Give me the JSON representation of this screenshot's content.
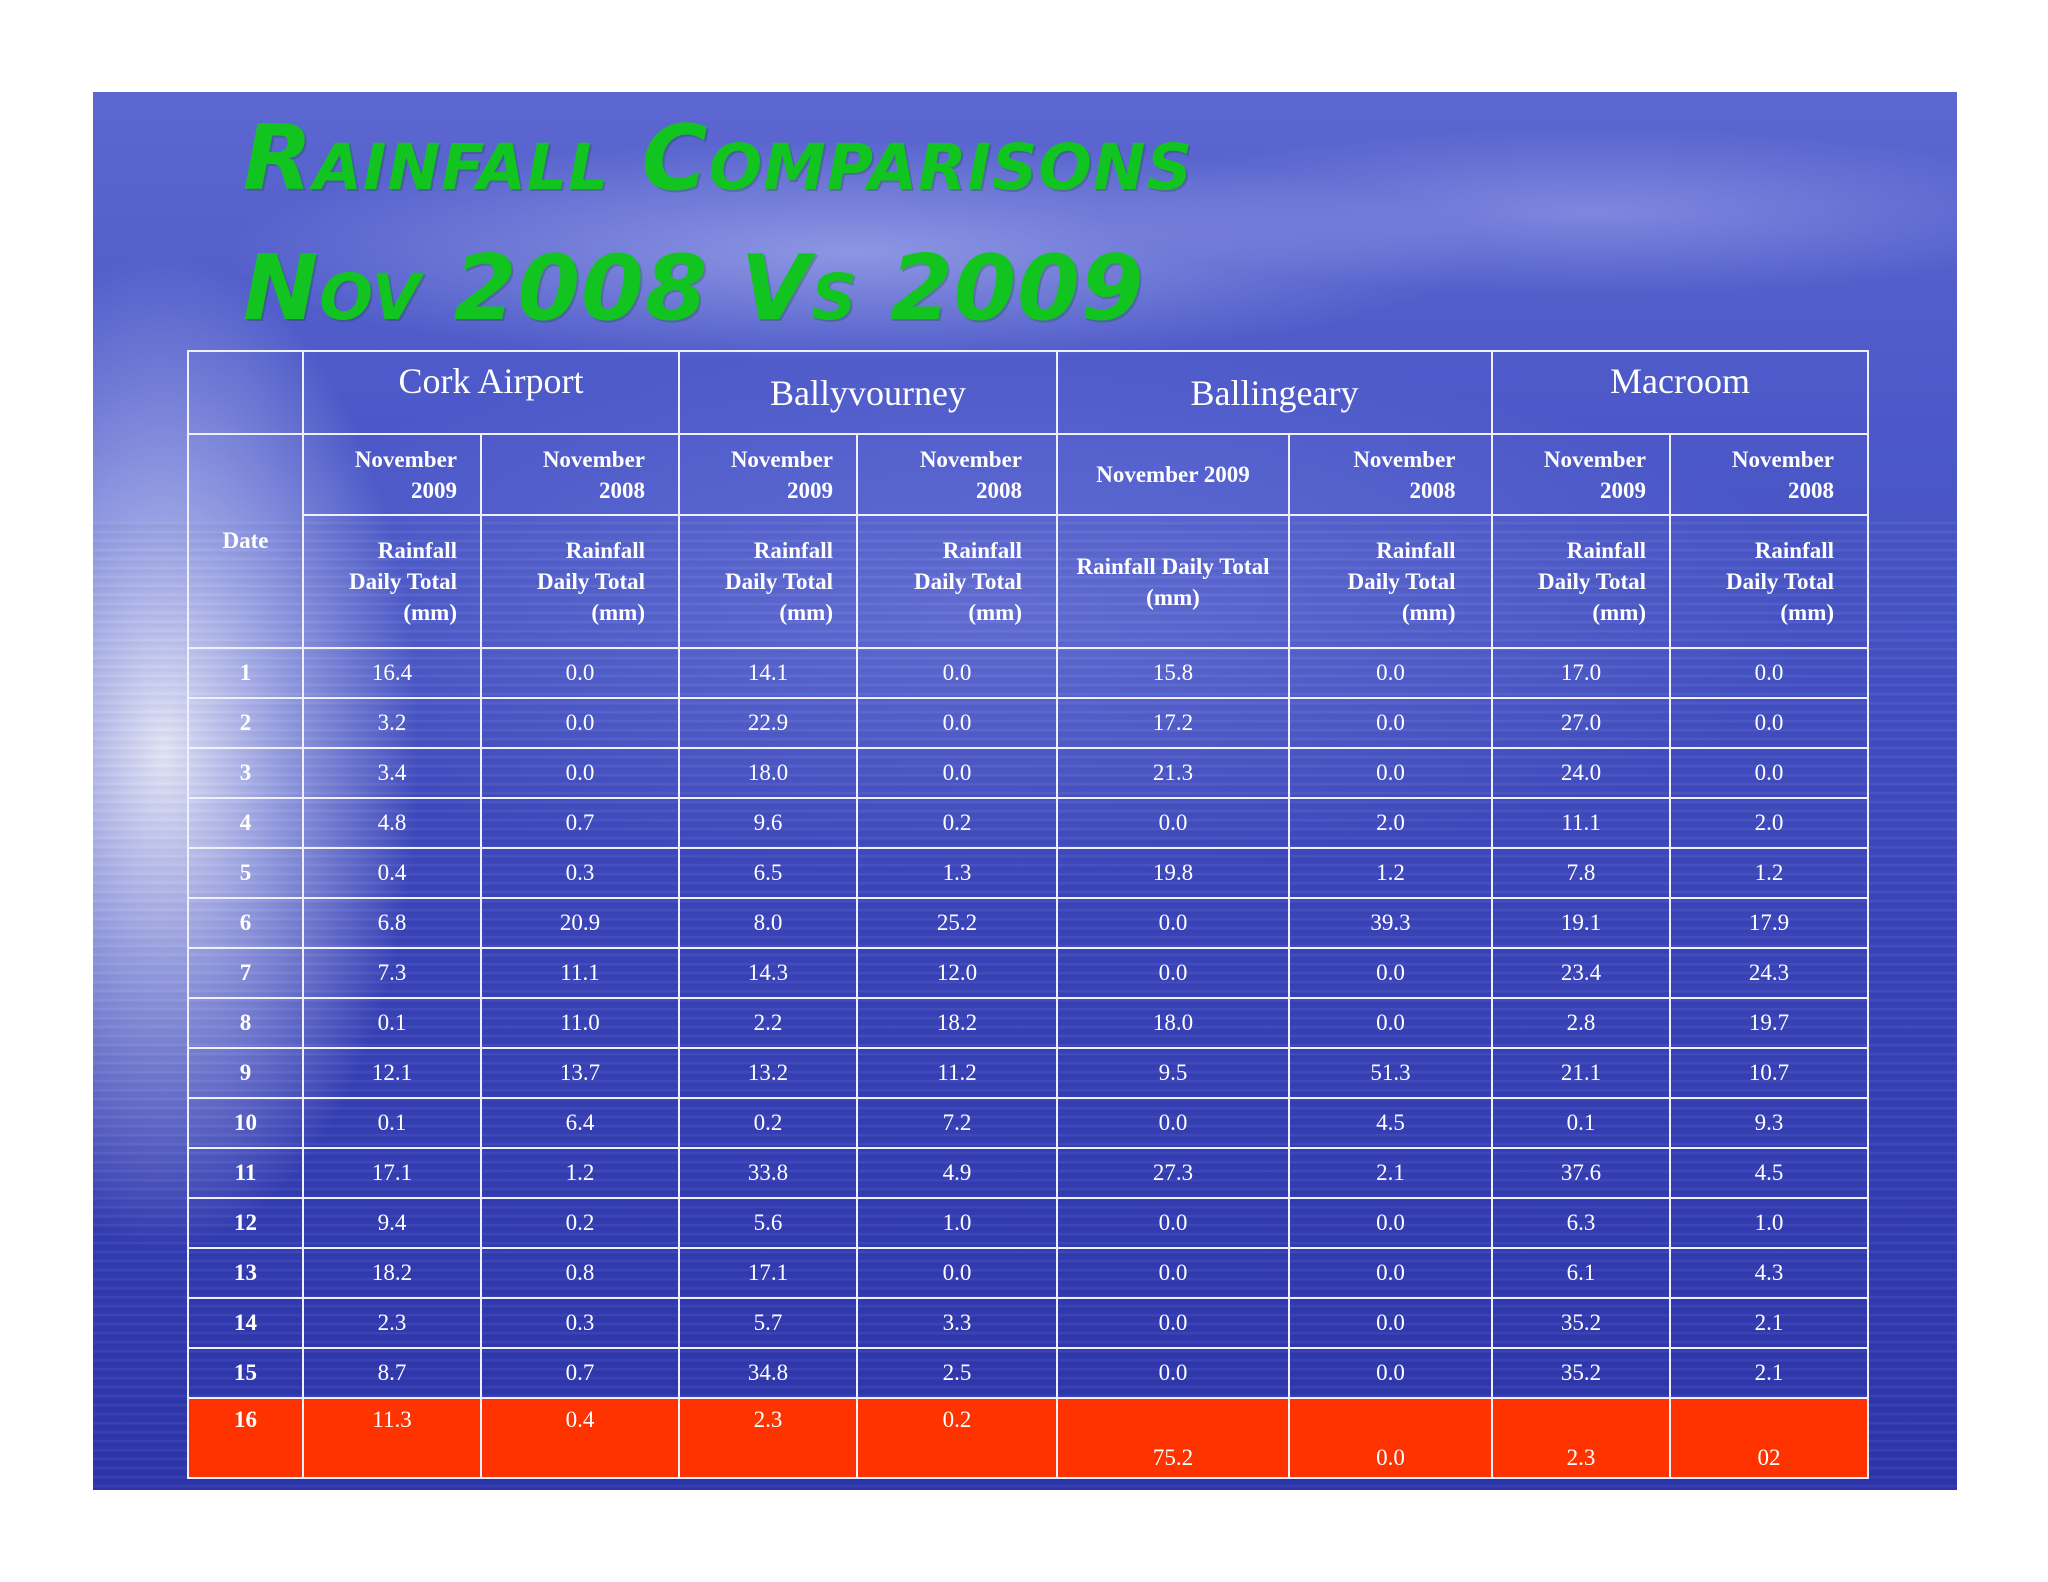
{
  "title_line_1": "Rainfall Comparisons",
  "title_line_2": "Nov 2008 Vs 2009",
  "colors": {
    "title": "#12c41f",
    "highlight_row": "#ff3300",
    "background": "#4653c4"
  },
  "table": {
    "stations": [
      "Cork Airport",
      "Ballyvourney",
      "Ballingeary",
      "Macroom"
    ],
    "date_label": "Date",
    "month_headers": [
      "November 2009",
      "November 2008",
      "November 2009",
      "November 2008",
      "November 2009",
      "November 2008",
      "November 2009",
      "November 2008"
    ],
    "metric_headers": [
      "Rainfall Daily Total (mm)",
      "Rainfall Daily Total (mm)",
      "Rainfall Daily Total (mm)",
      "Rainfall Daily Total (mm)",
      "Rainfall Daily Total (mm)",
      "Rainfall Daily Total (mm)",
      "Rainfall Daily Total (mm)",
      "Rainfall Daily Total (mm)"
    ],
    "rows": [
      {
        "date": "1",
        "values": [
          "16.4",
          "0.0",
          "14.1",
          "0.0",
          "15.8",
          "0.0",
          "17.0",
          "0.0"
        ]
      },
      {
        "date": "2",
        "values": [
          "3.2",
          "0.0",
          "22.9",
          "0.0",
          "17.2",
          "0.0",
          "27.0",
          "0.0"
        ]
      },
      {
        "date": "3",
        "values": [
          "3.4",
          "0.0",
          "18.0",
          "0.0",
          "21.3",
          "0.0",
          "24.0",
          "0.0"
        ]
      },
      {
        "date": "4",
        "values": [
          "4.8",
          "0.7",
          "9.6",
          "0.2",
          "0.0",
          "2.0",
          "11.1",
          "2.0"
        ]
      },
      {
        "date": "5",
        "values": [
          "0.4",
          "0.3",
          "6.5",
          "1.3",
          "19.8",
          "1.2",
          "7.8",
          "1.2"
        ]
      },
      {
        "date": "6",
        "values": [
          "6.8",
          "20.9",
          "8.0",
          "25.2",
          "0.0",
          "39.3",
          "19.1",
          "17.9"
        ]
      },
      {
        "date": "7",
        "values": [
          "7.3",
          "11.1",
          "14.3",
          "12.0",
          "0.0",
          "0.0",
          "23.4",
          "24.3"
        ]
      },
      {
        "date": "8",
        "values": [
          "0.1",
          "11.0",
          "2.2",
          "18.2",
          "18.0",
          "0.0",
          "2.8",
          "19.7"
        ]
      },
      {
        "date": "9",
        "values": [
          "12.1",
          "13.7",
          "13.2",
          "11.2",
          "9.5",
          "51.3",
          "21.1",
          "10.7"
        ]
      },
      {
        "date": "10",
        "values": [
          "0.1",
          "6.4",
          "0.2",
          "7.2",
          "0.0",
          "4.5",
          "0.1",
          "9.3"
        ]
      },
      {
        "date": "11",
        "values": [
          "17.1",
          "1.2",
          "33.8",
          "4.9",
          "27.3",
          "2.1",
          "37.6",
          "4.5"
        ]
      },
      {
        "date": "12",
        "values": [
          "9.4",
          "0.2",
          "5.6",
          "1.0",
          "0.0",
          "0.0",
          "6.3",
          "1.0"
        ]
      },
      {
        "date": "13",
        "values": [
          "18.2",
          "0.8",
          "17.1",
          "0.0",
          "0.0",
          "0.0",
          "6.1",
          "4.3"
        ]
      },
      {
        "date": "14",
        "values": [
          "2.3",
          "0.3",
          "5.7",
          "3.3",
          "0.0",
          "0.0",
          "35.2",
          "2.1"
        ]
      },
      {
        "date": "15",
        "values": [
          "8.7",
          "0.7",
          "34.8",
          "2.5",
          "0.0",
          "0.0",
          "35.2",
          "2.1"
        ]
      },
      {
        "date": "16",
        "values": [
          "11.3",
          "0.4",
          "2.3",
          "0.2",
          "75.2",
          "0.0",
          "2.3",
          "02"
        ],
        "highlighted": true
      }
    ]
  }
}
